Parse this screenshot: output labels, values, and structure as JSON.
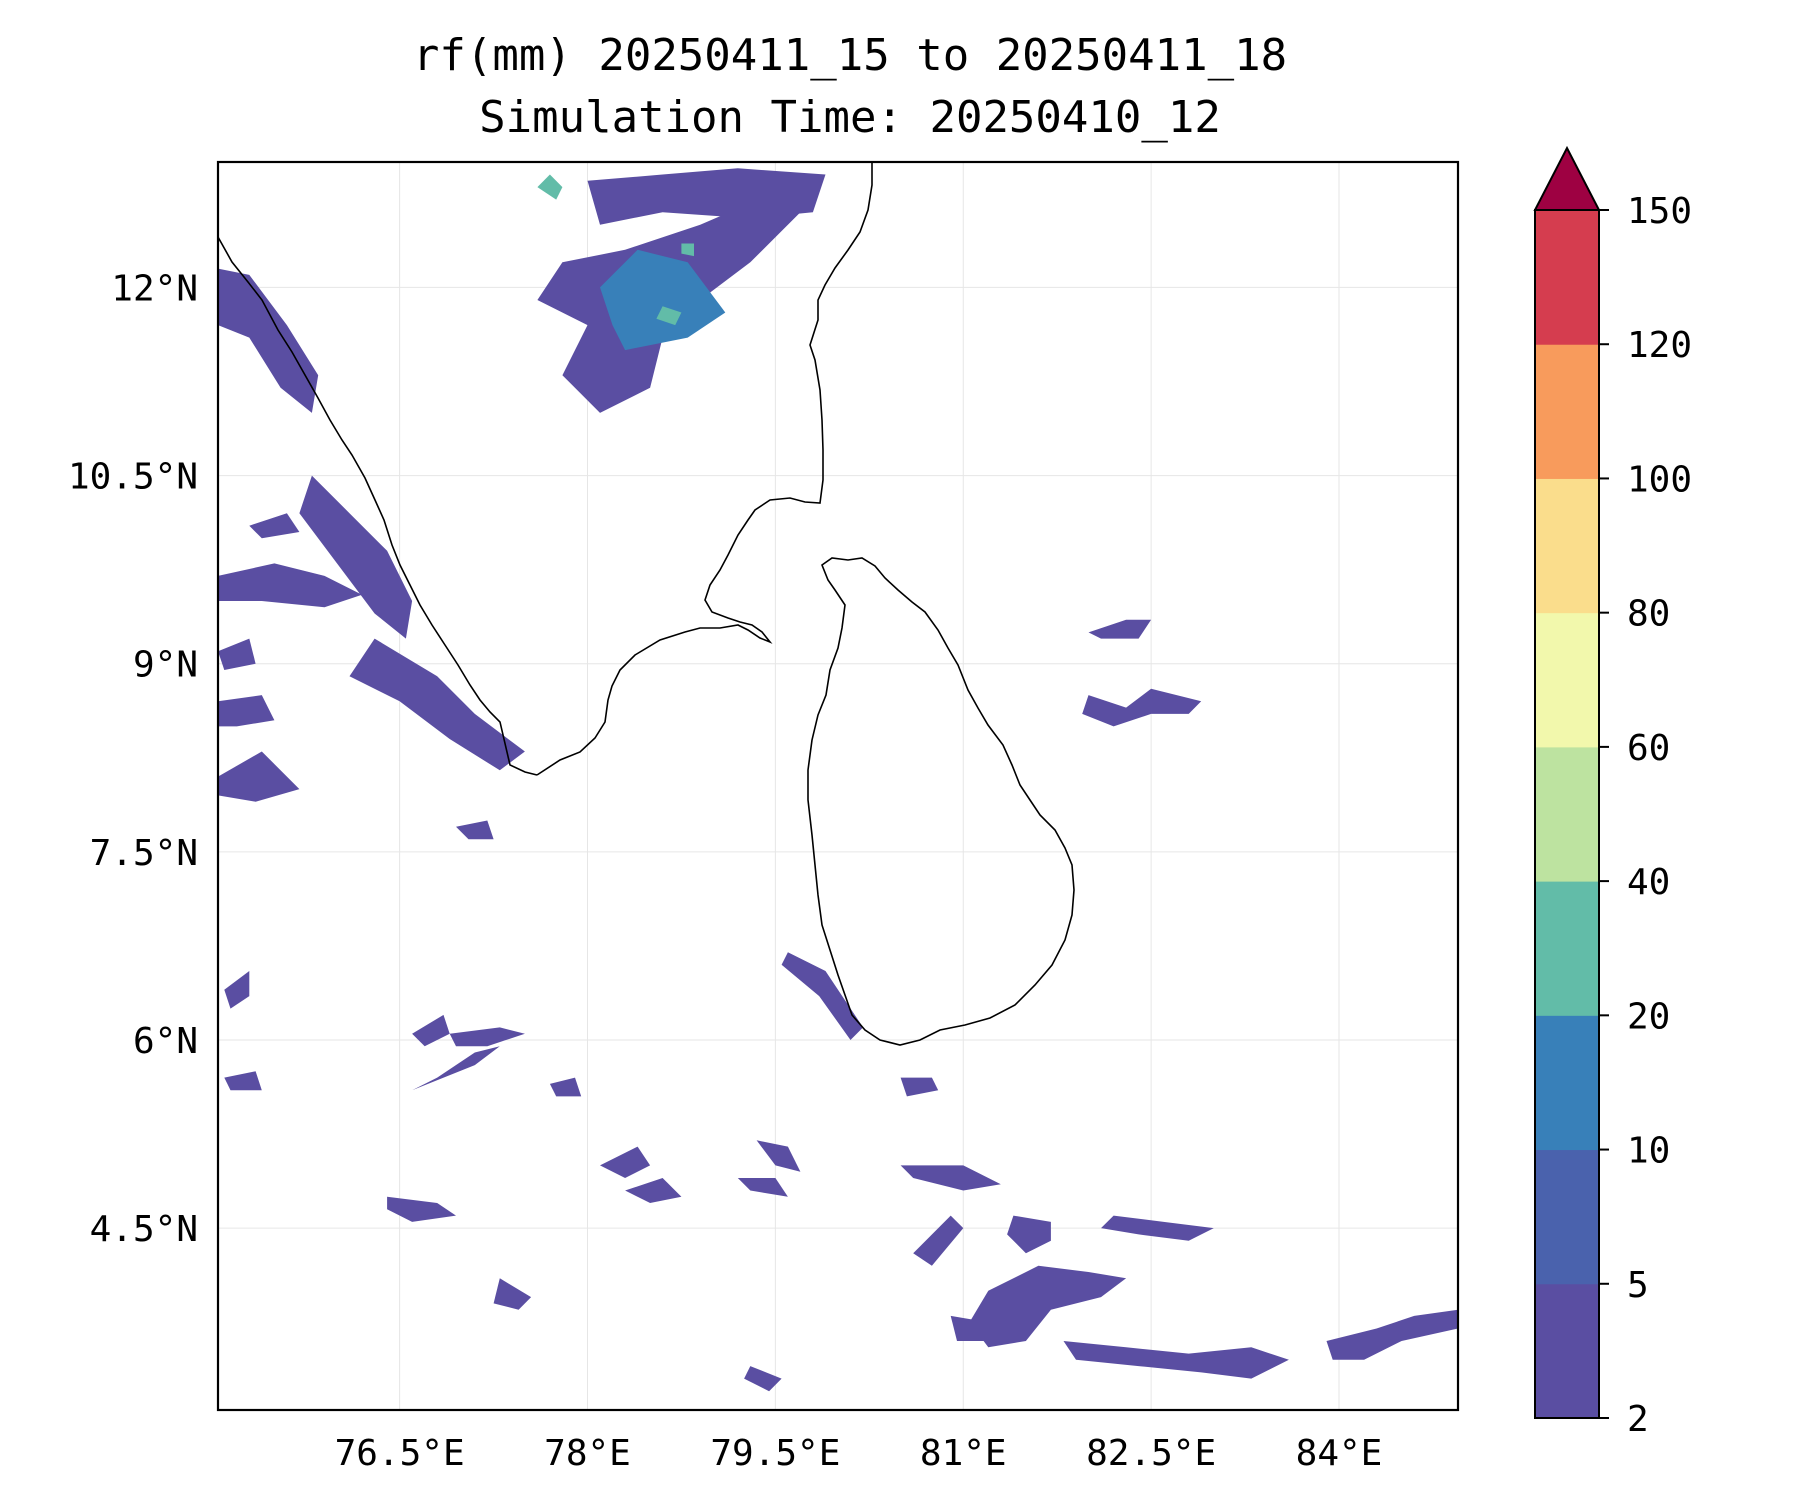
{
  "figure": {
    "title_line1": "rf(mm) 20250411_15 to 20250411_18",
    "title_line2": "Simulation Time: 20250410_12"
  },
  "map": {
    "extent": {
      "lon_min": 75.05,
      "lon_max": 84.95,
      "lat_min": 3.05,
      "lat_max": 13.0
    },
    "lon_ticks": [
      {
        "value": 76.5,
        "label": "76.5°E"
      },
      {
        "value": 78.0,
        "label": "78°E"
      },
      {
        "value": 79.5,
        "label": "79.5°E"
      },
      {
        "value": 81.0,
        "label": "81°E"
      },
      {
        "value": 82.5,
        "label": "82.5°E"
      },
      {
        "value": 84.0,
        "label": "84°E"
      }
    ],
    "lat_ticks": [
      {
        "value": 12.0,
        "label": "12°N"
      },
      {
        "value": 10.5,
        "label": "10.5°N"
      },
      {
        "value": 9.0,
        "label": "9°N"
      },
      {
        "value": 7.5,
        "label": "7.5°N"
      },
      {
        "value": 6.0,
        "label": "6°N"
      },
      {
        "value": 4.5,
        "label": "4.5°N"
      }
    ],
    "coastline_color": "#000000",
    "gridline_color": "#e6e6e6"
  },
  "colorbar": {
    "levels": [
      {
        "label": "2",
        "value": 2,
        "color": "#5a4ea2"
      },
      {
        "label": "5",
        "value": 5,
        "color": "#4a62ad"
      },
      {
        "label": "10",
        "value": 10,
        "color": "#3880b9"
      },
      {
        "label": "20",
        "value": 20,
        "color": "#62bca8"
      },
      {
        "label": "40",
        "value": 40,
        "color": "#bde3a0"
      },
      {
        "label": "60",
        "value": 60,
        "color": "#f2f8ac"
      },
      {
        "label": "80",
        "value": 80,
        "color": "#fadd8c"
      },
      {
        "label": "100",
        "value": 100,
        "color": "#f89b5c"
      },
      {
        "label": "120",
        "value": 120,
        "color": "#d53d4f"
      },
      {
        "label": "150",
        "value": 150,
        "color": null
      }
    ],
    "extend_color": "#9e0142"
  },
  "rain_cells": [
    {
      "id": "tn-north-core",
      "level": 2,
      "points": [
        [
          77.8,
          12.2
        ],
        [
          78.3,
          12.3
        ],
        [
          78.9,
          12.5
        ],
        [
          79.6,
          12.8
        ],
        [
          79.7,
          12.6
        ],
        [
          79.3,
          12.2
        ],
        [
          78.9,
          11.9
        ],
        [
          78.6,
          11.6
        ],
        [
          78.5,
          11.2
        ],
        [
          78.1,
          11.0
        ],
        [
          77.8,
          11.3
        ],
        [
          78.0,
          11.7
        ],
        [
          77.6,
          11.9
        ]
      ]
    },
    {
      "id": "tn-north-top",
      "level": 2,
      "points": [
        [
          78.0,
          12.85
        ],
        [
          78.6,
          12.9
        ],
        [
          79.2,
          12.95
        ],
        [
          79.9,
          12.9
        ],
        [
          79.8,
          12.6
        ],
        [
          79.3,
          12.55
        ],
        [
          78.6,
          12.6
        ],
        [
          78.1,
          12.5
        ]
      ]
    },
    {
      "id": "tn-north-medium",
      "level": 10,
      "points": [
        [
          78.3,
          11.5
        ],
        [
          78.8,
          11.6
        ],
        [
          79.1,
          11.8
        ],
        [
          78.8,
          12.2
        ],
        [
          78.4,
          12.3
        ],
        [
          78.1,
          12.0
        ],
        [
          78.2,
          11.7
        ]
      ]
    },
    {
      "id": "tn-north-core-20",
      "level": 20,
      "points": [
        [
          78.55,
          11.75
        ],
        [
          78.7,
          11.7
        ],
        [
          78.75,
          11.8
        ],
        [
          78.6,
          11.85
        ]
      ]
    },
    {
      "id": "tn-north-core-20b",
      "level": 20,
      "points": [
        [
          78.75,
          12.27
        ],
        [
          78.85,
          12.25
        ],
        [
          78.85,
          12.35
        ],
        [
          78.75,
          12.35
        ]
      ]
    },
    {
      "id": "tn-north-cyan-top",
      "level": 20,
      "points": [
        [
          77.6,
          12.8
        ],
        [
          77.75,
          12.7
        ],
        [
          77.8,
          12.8
        ],
        [
          77.7,
          12.9
        ]
      ]
    },
    {
      "id": "kerala-strip-1",
      "level": 2,
      "points": [
        [
          75.05,
          12.15
        ],
        [
          75.3,
          12.1
        ],
        [
          75.6,
          11.7
        ],
        [
          75.85,
          11.3
        ],
        [
          75.8,
          11.0
        ],
        [
          75.55,
          11.2
        ],
        [
          75.3,
          11.6
        ],
        [
          75.05,
          11.7
        ]
      ]
    },
    {
      "id": "kerala-strip-2",
      "level": 2,
      "points": [
        [
          75.8,
          10.5
        ],
        [
          76.1,
          10.2
        ],
        [
          76.4,
          9.9
        ],
        [
          76.6,
          9.5
        ],
        [
          76.55,
          9.2
        ],
        [
          76.3,
          9.4
        ],
        [
          76.0,
          9.8
        ],
        [
          75.7,
          10.2
        ]
      ]
    },
    {
      "id": "kerala-strip-3",
      "level": 2,
      "points": [
        [
          76.3,
          9.2
        ],
        [
          76.8,
          8.9
        ],
        [
          77.1,
          8.6
        ],
        [
          77.5,
          8.3
        ],
        [
          77.3,
          8.15
        ],
        [
          76.9,
          8.4
        ],
        [
          76.5,
          8.7
        ],
        [
          76.1,
          8.9
        ]
      ]
    },
    {
      "id": "arabian-cells-1",
      "level": 2,
      "points": [
        [
          75.05,
          9.7
        ],
        [
          75.5,
          9.8
        ],
        [
          75.9,
          9.7
        ],
        [
          76.2,
          9.55
        ],
        [
          75.9,
          9.45
        ],
        [
          75.4,
          9.5
        ],
        [
          75.05,
          9.5
        ]
      ]
    },
    {
      "id": "arabian-cells-2",
      "level": 2,
      "points": [
        [
          75.05,
          8.7
        ],
        [
          75.4,
          8.75
        ],
        [
          75.5,
          8.55
        ],
        [
          75.2,
          8.5
        ],
        [
          75.05,
          8.5
        ]
      ]
    },
    {
      "id": "arabian-cells-3",
      "level": 2,
      "points": [
        [
          75.05,
          8.1
        ],
        [
          75.4,
          8.3
        ],
        [
          75.7,
          8.0
        ],
        [
          75.35,
          7.9
        ],
        [
          75.05,
          7.95
        ]
      ]
    },
    {
      "id": "arabian-cells-4",
      "level": 2,
      "points": [
        [
          75.3,
          10.1
        ],
        [
          75.6,
          10.2
        ],
        [
          75.7,
          10.05
        ],
        [
          75.4,
          10.0
        ]
      ]
    },
    {
      "id": "arabian-cells-5",
      "level": 2,
      "points": [
        [
          75.05,
          9.1
        ],
        [
          75.3,
          9.2
        ],
        [
          75.35,
          9.0
        ],
        [
          75.1,
          8.95
        ]
      ]
    },
    {
      "id": "srilanka-east-1",
      "level": 2,
      "points": [
        [
          82.0,
          9.25
        ],
        [
          82.3,
          9.35
        ],
        [
          82.5,
          9.35
        ],
        [
          82.4,
          9.2
        ],
        [
          82.1,
          9.2
        ]
      ]
    },
    {
      "id": "srilanka-east-2",
      "level": 2,
      "points": [
        [
          82.0,
          8.75
        ],
        [
          82.3,
          8.65
        ],
        [
          82.5,
          8.8
        ],
        [
          82.9,
          8.7
        ],
        [
          82.8,
          8.6
        ],
        [
          82.5,
          8.6
        ],
        [
          82.2,
          8.5
        ],
        [
          81.95,
          8.6
        ]
      ]
    },
    {
      "id": "sw-srilanka-1",
      "level": 2,
      "points": [
        [
          79.6,
          6.7
        ],
        [
          79.9,
          6.55
        ],
        [
          80.2,
          6.1
        ],
        [
          80.1,
          6.0
        ],
        [
          79.85,
          6.35
        ],
        [
          79.55,
          6.6
        ]
      ]
    },
    {
      "id": "south-bay-1",
      "level": 2,
      "points": [
        [
          81.2,
          4.0
        ],
        [
          81.6,
          4.2
        ],
        [
          82.0,
          4.15
        ],
        [
          82.3,
          4.1
        ],
        [
          82.1,
          3.95
        ],
        [
          81.7,
          3.85
        ],
        [
          81.5,
          3.6
        ],
        [
          81.2,
          3.55
        ],
        [
          81.05,
          3.75
        ]
      ]
    },
    {
      "id": "south-bay-2",
      "level": 2,
      "points": [
        [
          81.8,
          3.6
        ],
        [
          82.3,
          3.55
        ],
        [
          82.8,
          3.5
        ],
        [
          83.3,
          3.55
        ],
        [
          83.6,
          3.45
        ],
        [
          83.3,
          3.3
        ],
        [
          82.9,
          3.35
        ],
        [
          82.4,
          3.4
        ],
        [
          81.9,
          3.45
        ]
      ]
    },
    {
      "id": "south-bay-3",
      "level": 2,
      "points": [
        [
          83.9,
          3.6
        ],
        [
          84.3,
          3.7
        ],
        [
          84.6,
          3.8
        ],
        [
          84.95,
          3.85
        ],
        [
          84.95,
          3.7
        ],
        [
          84.5,
          3.6
        ],
        [
          84.2,
          3.45
        ],
        [
          83.95,
          3.45
        ]
      ]
    },
    {
      "id": "south-bay-4",
      "level": 2,
      "points": [
        [
          82.2,
          4.6
        ],
        [
          82.6,
          4.55
        ],
        [
          83.0,
          4.5
        ],
        [
          82.8,
          4.4
        ],
        [
          82.4,
          4.45
        ],
        [
          82.1,
          4.5
        ]
      ]
    },
    {
      "id": "south-bay-5",
      "level": 2,
      "points": [
        [
          80.5,
          5.0
        ],
        [
          81.0,
          5.0
        ],
        [
          81.3,
          4.85
        ],
        [
          81.0,
          4.8
        ],
        [
          80.6,
          4.9
        ]
      ]
    },
    {
      "id": "south-bay-6",
      "level": 2,
      "points": [
        [
          80.6,
          4.3
        ],
        [
          80.9,
          4.6
        ],
        [
          81.0,
          4.5
        ],
        [
          80.75,
          4.2
        ]
      ]
    },
    {
      "id": "south-bay-7",
      "level": 2,
      "points": [
        [
          81.4,
          4.6
        ],
        [
          81.7,
          4.55
        ],
        [
          81.7,
          4.4
        ],
        [
          81.5,
          4.3
        ],
        [
          81.35,
          4.45
        ]
      ]
    },
    {
      "id": "mid-sea-1",
      "level": 2,
      "points": [
        [
          76.6,
          5.6
        ],
        [
          77.1,
          5.8
        ],
        [
          77.3,
          5.95
        ],
        [
          77.1,
          5.9
        ],
        [
          76.8,
          5.7
        ]
      ]
    },
    {
      "id": "mid-sea-2",
      "level": 2,
      "points": [
        [
          76.9,
          6.05
        ],
        [
          77.3,
          6.1
        ],
        [
          77.5,
          6.05
        ],
        [
          77.2,
          5.95
        ],
        [
          76.95,
          5.95
        ]
      ]
    },
    {
      "id": "mid-sea-3",
      "level": 2,
      "points": [
        [
          76.6,
          6.05
        ],
        [
          76.85,
          6.2
        ],
        [
          76.9,
          6.05
        ],
        [
          76.7,
          5.95
        ]
      ]
    },
    {
      "id": "mid-sea-4",
      "level": 2,
      "points": [
        [
          76.4,
          4.75
        ],
        [
          76.8,
          4.7
        ],
        [
          76.95,
          4.6
        ],
        [
          76.6,
          4.55
        ],
        [
          76.4,
          4.65
        ]
      ]
    },
    {
      "id": "mid-sea-5",
      "level": 2,
      "points": [
        [
          78.3,
          4.8
        ],
        [
          78.6,
          4.9
        ],
        [
          78.75,
          4.75
        ],
        [
          78.5,
          4.7
        ]
      ]
    },
    {
      "id": "mid-sea-6",
      "level": 2,
      "points": [
        [
          78.1,
          5.0
        ],
        [
          78.4,
          5.15
        ],
        [
          78.5,
          5.0
        ],
        [
          78.3,
          4.9
        ]
      ]
    },
    {
      "id": "mid-sea-7",
      "level": 2,
      "points": [
        [
          79.35,
          5.2
        ],
        [
          79.6,
          5.15
        ],
        [
          79.7,
          4.95
        ],
        [
          79.5,
          5.0
        ]
      ]
    },
    {
      "id": "mid-sea-8",
      "level": 2,
      "points": [
        [
          79.2,
          4.9
        ],
        [
          79.5,
          4.9
        ],
        [
          79.6,
          4.75
        ],
        [
          79.3,
          4.8
        ]
      ]
    },
    {
      "id": "mid-sea-9",
      "level": 2,
      "points": [
        [
          77.3,
          4.1
        ],
        [
          77.55,
          3.95
        ],
        [
          77.45,
          3.85
        ],
        [
          77.25,
          3.9
        ]
      ]
    },
    {
      "id": "mid-sea-10",
      "level": 2,
      "points": [
        [
          76.95,
          7.7
        ],
        [
          77.2,
          7.75
        ],
        [
          77.25,
          7.6
        ],
        [
          77.05,
          7.6
        ]
      ]
    },
    {
      "id": "mid-sea-11",
      "level": 2,
      "points": [
        [
          75.1,
          6.4
        ],
        [
          75.3,
          6.55
        ],
        [
          75.3,
          6.35
        ],
        [
          75.15,
          6.25
        ]
      ]
    },
    {
      "id": "mid-sea-12",
      "level": 2,
      "points": [
        [
          75.1,
          5.7
        ],
        [
          75.35,
          5.75
        ],
        [
          75.4,
          5.6
        ],
        [
          75.15,
          5.6
        ]
      ]
    },
    {
      "id": "mid-sea-13",
      "level": 2,
      "points": [
        [
          77.7,
          5.65
        ],
        [
          77.9,
          5.7
        ],
        [
          77.95,
          5.55
        ],
        [
          77.75,
          5.55
        ]
      ]
    },
    {
      "id": "mid-sea-14",
      "level": 2,
      "points": [
        [
          80.5,
          5.7
        ],
        [
          80.75,
          5.7
        ],
        [
          80.8,
          5.6
        ],
        [
          80.55,
          5.55
        ]
      ]
    },
    {
      "id": "mid-sea-15",
      "level": 2,
      "points": [
        [
          79.3,
          3.4
        ],
        [
          79.55,
          3.3
        ],
        [
          79.45,
          3.2
        ],
        [
          79.25,
          3.3
        ]
      ]
    },
    {
      "id": "mid-sea-16",
      "level": 2,
      "points": [
        [
          80.9,
          3.8
        ],
        [
          81.2,
          3.75
        ],
        [
          81.25,
          3.6
        ],
        [
          80.95,
          3.6
        ]
      ]
    }
  ]
}
